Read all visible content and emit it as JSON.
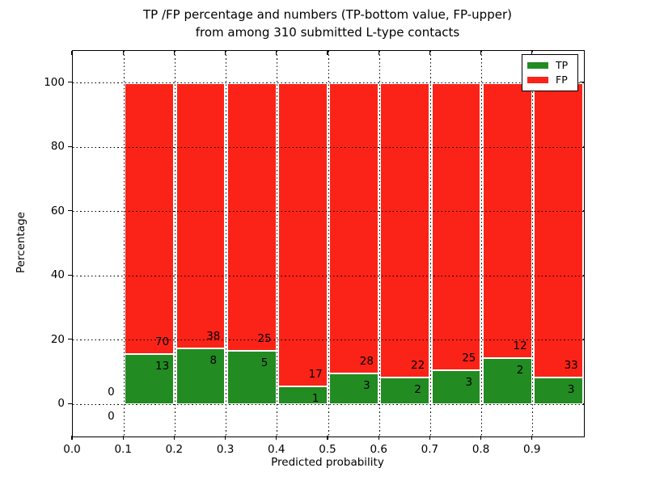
{
  "title": {
    "line1": "TP /FP percentage and numbers (TP-bottom value, FP-upper)",
    "line2": "from among 310 submitted L-type contacts"
  },
  "axes": {
    "xlabel": "Predicted probability",
    "ylabel": "Percentage",
    "xlim": [
      0.0,
      1.0
    ],
    "ylim": [
      -10,
      110
    ],
    "yticks": [
      0,
      20,
      40,
      60,
      80,
      100
    ],
    "xticks": [
      "0.0",
      "0.1",
      "0.2",
      "0.3",
      "0.4",
      "0.5",
      "0.6",
      "0.7",
      "0.8",
      "0.9"
    ],
    "grid": "dotted"
  },
  "legend": {
    "position": "upper-right",
    "items": [
      {
        "label": "TP",
        "color": "#228b22"
      },
      {
        "label": "FP",
        "color": "#fb2318"
      }
    ]
  },
  "colors": {
    "tp": "#228b22",
    "fp": "#fb2318",
    "bar_edge": "#ffffff",
    "background": "#ffffff",
    "text": "#000000"
  },
  "chart_data": {
    "type": "bar",
    "stacked": true,
    "normalized_to": 100,
    "total_contacts": 310,
    "bin_width": 0.1,
    "bins": [
      {
        "x0": 0.0,
        "x1": 0.1,
        "tp": 0,
        "fp": 0,
        "tp_pct": 0,
        "fp_pct": 0
      },
      {
        "x0": 0.1,
        "x1": 0.2,
        "tp": 13,
        "fp": 70,
        "tp_pct": 15.66,
        "fp_pct": 84.34
      },
      {
        "x0": 0.2,
        "x1": 0.3,
        "tp": 8,
        "fp": 38,
        "tp_pct": 17.39,
        "fp_pct": 82.61
      },
      {
        "x0": 0.3,
        "x1": 0.4,
        "tp": 5,
        "fp": 25,
        "tp_pct": 16.67,
        "fp_pct": 83.33
      },
      {
        "x0": 0.4,
        "x1": 0.5,
        "tp": 1,
        "fp": 17,
        "tp_pct": 5.56,
        "fp_pct": 94.44
      },
      {
        "x0": 0.5,
        "x1": 0.6,
        "tp": 3,
        "fp": 28,
        "tp_pct": 9.68,
        "fp_pct": 90.32
      },
      {
        "x0": 0.6,
        "x1": 0.7,
        "tp": 2,
        "fp": 22,
        "tp_pct": 8.33,
        "fp_pct": 91.67
      },
      {
        "x0": 0.7,
        "x1": 0.8,
        "tp": 3,
        "fp": 25,
        "tp_pct": 10.71,
        "fp_pct": 89.29
      },
      {
        "x0": 0.8,
        "x1": 0.9,
        "tp": 2,
        "fp": 12,
        "tp_pct": 14.29,
        "fp_pct": 85.71
      },
      {
        "x0": 0.9,
        "x1": 1.0,
        "tp": 3,
        "fp": 33,
        "tp_pct": 8.33,
        "fp_pct": 91.67
      }
    ]
  }
}
